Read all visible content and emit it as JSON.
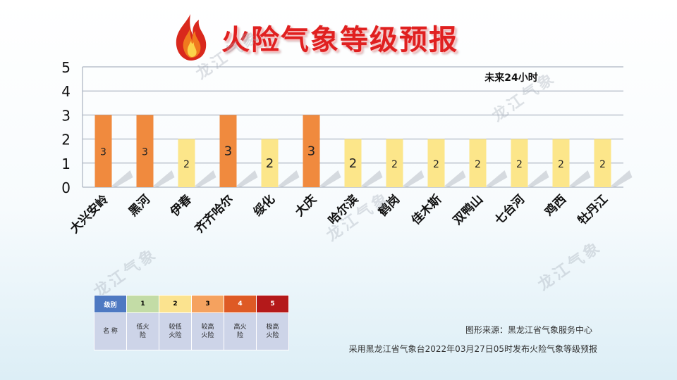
{
  "header": {
    "title": "火险气象等级预报",
    "flame_icon": "flame-icon"
  },
  "chart_data": {
    "type": "bar",
    "annotation": "未来24小时",
    "categories": [
      "大兴安岭",
      "黑河",
      "伊春",
      "齐齐哈尔",
      "绥化",
      "大庆",
      "哈尔滨",
      "鹤岗",
      "佳木斯",
      "双鸭山",
      "七台河",
      "鸡西",
      "牡丹江"
    ],
    "values": [
      3,
      3,
      2,
      3,
      2,
      3,
      2,
      2,
      2,
      2,
      2,
      2,
      2
    ],
    "ylim": [
      0,
      5
    ],
    "yticks": [
      0,
      1,
      2,
      3,
      4,
      5
    ],
    "grid": true,
    "colors": {
      "level_2": "#fce68a",
      "level_3": "#f08a3e"
    }
  },
  "legend_table": {
    "header_label": "级别",
    "row_label": "名 称",
    "levels": [
      {
        "level": "1",
        "name": "低火险",
        "color": "#c3dca6"
      },
      {
        "level": "2",
        "name": "较低火险",
        "color": "#fbe38f"
      },
      {
        "level": "3",
        "name": "较高火险",
        "color": "#f5a25f"
      },
      {
        "level": "4",
        "name": "高火险",
        "color": "#de5a25"
      },
      {
        "level": "5",
        "name": "极高火险",
        "color": "#b4191a"
      }
    ],
    "header_color": "#4e79c2"
  },
  "footer": {
    "source": "图形来源：黑龙江省气象服务中心",
    "publish": "采用黑龙江省气象台2022年03月27日05时发布火险气象等级预报"
  },
  "watermark": "龙江气象"
}
